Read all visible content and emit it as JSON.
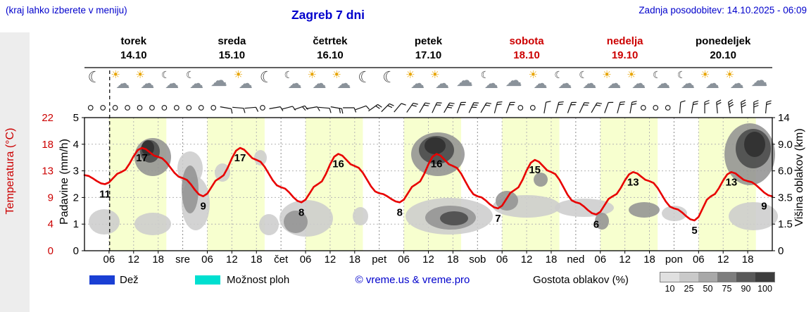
{
  "header": {
    "hint": "(kraj lahko izberete v meniju)",
    "title": "Zagreb 7 dni",
    "updated": "Zadnja posodobitev: 14.10.2025 - 06:09"
  },
  "days": [
    {
      "name": "torek",
      "date": "14.10",
      "color": "#000000"
    },
    {
      "name": "sreda",
      "date": "15.10",
      "color": "#000000"
    },
    {
      "name": "četrtek",
      "date": "16.10",
      "color": "#000000"
    },
    {
      "name": "petek",
      "date": "17.10",
      "color": "#000000"
    },
    {
      "name": "sobota",
      "date": "18.10",
      "color": "#cc0000"
    },
    {
      "name": "nedelja",
      "date": "19.10",
      "color": "#cc0000"
    },
    {
      "name": "ponedeljek",
      "date": "20.10",
      "color": "#000000"
    }
  ],
  "icons": [
    "moon",
    "sun-cloud",
    "sun-cloud",
    "moon-cloud",
    "moon-cloud",
    "cloud",
    "sun-cloud",
    "moon",
    "moon-cloud",
    "sun-cloud",
    "sun-cloud",
    "moon",
    "moon",
    "sun-cloud",
    "sun-cloud",
    "cloud",
    "moon-cloud",
    "cloud",
    "sun-cloud",
    "moon-cloud",
    "moon-cloud",
    "sun-cloud",
    "sun-cloud",
    "moon-cloud",
    "moon-cloud",
    "sun-cloud",
    "sun-cloud",
    "cloud"
  ],
  "axes": {
    "temp": {
      "title": "Temperatura (°C)",
      "ticks": [
        "0",
        "4",
        "9",
        "13",
        "18",
        "22"
      ],
      "color": "#cc0000"
    },
    "precip": {
      "title": "Padavine (mm/h)",
      "ticks": [
        "0",
        "1",
        "2",
        "3",
        "4",
        "5"
      ]
    },
    "cloudheight": {
      "title": "Višina oblakov (km)",
      "ticks": [
        "0",
        "1.5",
        "3.5",
        "6.0",
        "9.0",
        "14"
      ]
    },
    "x": {
      "hours": [
        "06",
        "12",
        "18"
      ],
      "dayabbrs": [
        "sre",
        "čet",
        "pet",
        "sob",
        "ned",
        "pon"
      ]
    }
  },
  "chart_data": {
    "type": "line",
    "title": "Zagreb 7 dni",
    "x_unit": "hours",
    "x_range": [
      0,
      168
    ],
    "now_hour": 6.15,
    "day_band_hours": [
      6,
      20
    ],
    "day_band_color": "#f7ffcf",
    "series": [
      {
        "name": "Temperatura",
        "unit": "°C",
        "color": "#e80000",
        "points": [
          [
            0,
            12.5
          ],
          [
            5,
            11
          ],
          [
            9,
            13
          ],
          [
            14,
            17
          ],
          [
            18,
            15.5
          ],
          [
            24,
            12
          ],
          [
            29,
            9
          ],
          [
            33,
            12
          ],
          [
            38,
            17
          ],
          [
            42,
            15
          ],
          [
            48,
            10.5
          ],
          [
            53,
            8
          ],
          [
            57,
            11
          ],
          [
            62,
            16
          ],
          [
            66,
            14
          ],
          [
            72,
            9.5
          ],
          [
            77,
            8
          ],
          [
            81,
            11
          ],
          [
            86,
            16
          ],
          [
            90,
            14
          ],
          [
            96,
            9
          ],
          [
            101,
            7
          ],
          [
            105,
            10
          ],
          [
            110,
            15
          ],
          [
            114,
            13
          ],
          [
            120,
            8
          ],
          [
            125,
            6
          ],
          [
            129,
            9
          ],
          [
            134,
            13
          ],
          [
            138,
            11.5
          ],
          [
            144,
            7
          ],
          [
            149,
            5
          ],
          [
            153,
            9
          ],
          [
            158,
            13
          ],
          [
            162,
            11.5
          ],
          [
            168,
            9
          ]
        ],
        "extrema_labels": [
          [
            5,
            11
          ],
          [
            14,
            17
          ],
          [
            29,
            9
          ],
          [
            38,
            17
          ],
          [
            53,
            8
          ],
          [
            62,
            16
          ],
          [
            77,
            8
          ],
          [
            86,
            16
          ],
          [
            101,
            7
          ],
          [
            110,
            15
          ],
          [
            125,
            6
          ],
          [
            134,
            13
          ],
          [
            149,
            5
          ],
          [
            158,
            13
          ],
          [
            166,
            9
          ]
        ]
      }
    ],
    "cloud_blobs": [
      [
        28,
        148,
        22,
        18,
        "#cdcdcd"
      ],
      [
        97,
        151,
        26,
        16,
        "#cdcdcd"
      ],
      [
        150,
        72,
        18,
        24,
        "#cdcdcd"
      ],
      [
        158,
        122,
        20,
        38,
        "#cdcdcd"
      ],
      [
        196,
        78,
        11,
        13,
        "#cdcdcd"
      ],
      [
        250,
        57,
        9,
        11,
        "#cdcdcd"
      ],
      [
        315,
        143,
        38,
        26,
        "#cdcdcd"
      ],
      [
        262,
        152,
        14,
        15,
        "#cdcdcd"
      ],
      [
        392,
        140,
        11,
        13,
        "#cdcdcd"
      ],
      [
        518,
        140,
        62,
        26,
        "#cdcdcd"
      ],
      [
        628,
        126,
        48,
        16,
        "#cdcdcd"
      ],
      [
        710,
        128,
        42,
        13,
        "#cdcdcd"
      ],
      [
        838,
        136,
        18,
        11,
        "#cdcdcd"
      ],
      [
        950,
        140,
        35,
        20,
        "#cdcdcd"
      ],
      [
        97,
        56,
        26,
        27,
        "#939393"
      ],
      [
        150,
        102,
        12,
        34,
        "#939393"
      ],
      [
        300,
        148,
        17,
        16,
        "#939393"
      ],
      [
        502,
        52,
        38,
        31,
        "#939393"
      ],
      [
        520,
        142,
        36,
        17,
        "#939393"
      ],
      [
        600,
        118,
        16,
        14,
        "#939393"
      ],
      [
        648,
        88,
        10,
        10,
        "#939393"
      ],
      [
        735,
        147,
        10,
        12,
        "#939393"
      ],
      [
        795,
        131,
        22,
        11,
        "#939393"
      ],
      [
        945,
        52,
        36,
        44,
        "#939393"
      ],
      [
        93,
        48,
        14,
        16,
        "#4a4a4a"
      ],
      [
        500,
        46,
        25,
        20,
        "#4a4a4a"
      ],
      [
        950,
        44,
        25,
        28,
        "#4a4a4a"
      ],
      [
        525,
        143,
        20,
        10,
        "#4a4a4a"
      ],
      [
        90,
        43,
        9,
        11,
        "#2f2f2f"
      ],
      [
        498,
        40,
        15,
        12,
        "#2f2f2f"
      ],
      [
        952,
        38,
        15,
        18,
        "#2f2f2f"
      ]
    ],
    "wind": [
      "c",
      "c",
      "c",
      "c",
      "c",
      "c",
      "c",
      "c",
      "c",
      "c",
      "c",
      "b:100:1",
      "b:95:1",
      "b:85:1",
      "c",
      "b:80:1",
      "b:75:1",
      "b:70:2",
      "b:80:1",
      "b:95:1",
      "b:100:2",
      "b:90:1",
      "b:70:1",
      "b:55:2",
      "b:45:2",
      "b:40:1",
      "b:35:2",
      "b:30:2",
      "b:25:2",
      "b:30:3",
      "b:20:2",
      "b:25:3",
      "b:30:2",
      "b:15:2",
      "b:20:2",
      "c",
      "c",
      "b:10:1",
      "b:15:2",
      "b:20:2",
      "b:25:2",
      "b:30:2",
      "b:20:1",
      "b:15:2",
      "b:10:2",
      "c",
      "c",
      "c",
      "b:5:1",
      "b:10:2",
      "b:0:2",
      "b:-5:2",
      "b:-10:3",
      "b:-5:3",
      "b:0:3",
      "b:5:2"
    ]
  },
  "legend": {
    "rain": "Dež",
    "rain_color": "#1a3fd4",
    "showers": "Možnost ploh",
    "showers_color": "#00dfd0",
    "credit": "© vreme.us & vreme.pro",
    "cloud_label": "Gostota oblakov (%)",
    "cloud_scale": [
      {
        "label": "10",
        "color": "#e0e0e0"
      },
      {
        "label": "25",
        "color": "#c9c9c9"
      },
      {
        "label": "50",
        "color": "#a8a8a8"
      },
      {
        "label": "75",
        "color": "#7d7d7d"
      },
      {
        "label": "90",
        "color": "#595959"
      },
      {
        "label": "100",
        "color": "#3d3d3d"
      }
    ]
  }
}
